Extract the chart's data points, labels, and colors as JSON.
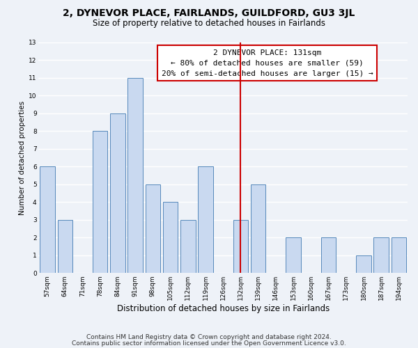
{
  "title": "2, DYNEVOR PLACE, FAIRLANDS, GUILDFORD, GU3 3JL",
  "subtitle": "Size of property relative to detached houses in Fairlands",
  "xlabel": "Distribution of detached houses by size in Fairlands",
  "ylabel": "Number of detached properties",
  "bar_labels": [
    "57sqm",
    "64sqm",
    "71sqm",
    "78sqm",
    "84sqm",
    "91sqm",
    "98sqm",
    "105sqm",
    "112sqm",
    "119sqm",
    "126sqm",
    "132sqm",
    "139sqm",
    "146sqm",
    "153sqm",
    "160sqm",
    "167sqm",
    "173sqm",
    "180sqm",
    "187sqm",
    "194sqm"
  ],
  "bar_values": [
    6,
    3,
    0,
    8,
    9,
    11,
    5,
    4,
    3,
    6,
    0,
    3,
    5,
    0,
    2,
    0,
    2,
    0,
    1,
    2,
    2
  ],
  "bar_color": "#c9d9f0",
  "bar_edge_color": "#5588bb",
  "highlight_bar_index": 11,
  "highlight_line_color": "#cc0000",
  "annotation_title": "2 DYNEVOR PLACE: 131sqm",
  "annotation_line1": "← 80% of detached houses are smaller (59)",
  "annotation_line2": "20% of semi-detached houses are larger (15) →",
  "annotation_box_color": "#ffffff",
  "annotation_box_edge_color": "#cc0000",
  "ylim": [
    0,
    13
  ],
  "yticks": [
    0,
    1,
    2,
    3,
    4,
    5,
    6,
    7,
    8,
    9,
    10,
    11,
    12,
    13
  ],
  "footer_line1": "Contains HM Land Registry data © Crown copyright and database right 2024.",
  "footer_line2": "Contains public sector information licensed under the Open Government Licence v3.0.",
  "background_color": "#eef2f8",
  "grid_color": "#ffffff",
  "title_fontsize": 10,
  "subtitle_fontsize": 8.5,
  "xlabel_fontsize": 8.5,
  "ylabel_fontsize": 7.5,
  "tick_fontsize": 6.5,
  "annotation_fontsize": 8,
  "footer_fontsize": 6.5
}
